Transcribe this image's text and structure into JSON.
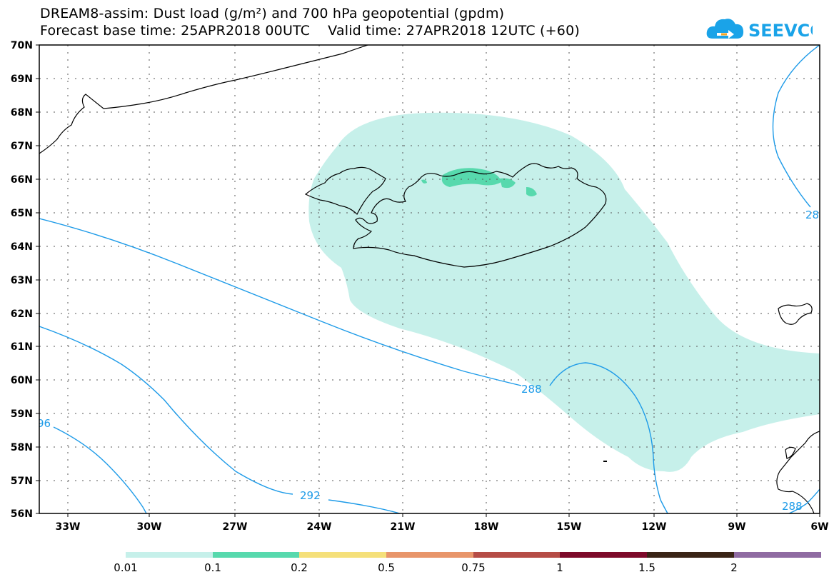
{
  "title": {
    "line1": "DREAM8-assim: Dust load (g/m²) and 700 hPa geopotential (gpdm)",
    "line2": "Forecast base time: 25APR2018 00UTC    Valid time: 27APR2018 12UTC (+60)"
  },
  "logo": {
    "text": "SEEVCCC",
    "icon": "cloud-arrow-icon",
    "color": "#1aa3e8"
  },
  "lat_labels": [
    "70N",
    "69N",
    "68N",
    "67N",
    "66N",
    "65N",
    "64N",
    "63N",
    "62N",
    "61N",
    "60N",
    "59N",
    "58N",
    "57N",
    "56N"
  ],
  "lon_labels": [
    "33W",
    "30W",
    "27W",
    "24W",
    "21W",
    "18W",
    "15W",
    "12W",
    "9W",
    "6W"
  ],
  "contour_labels": [
    "288",
    "292",
    "96",
    "28",
    "288"
  ],
  "colorbar": {
    "ticks": [
      "0.01",
      "0.1",
      "0.2",
      "0.5",
      "0.75",
      "1",
      "1.5",
      "2"
    ],
    "colors": [
      "#c6f0ea",
      "#57d9ad",
      "#f5e07a",
      "#e8956a",
      "#b54c46",
      "#7d0a2a",
      "#3a2416",
      "#8f6ba2"
    ]
  },
  "colors": {
    "contour": "#1e9be8",
    "dust_low": "#c6f0ea",
    "dust_mid": "#57d9ad",
    "coast": "#000000"
  }
}
